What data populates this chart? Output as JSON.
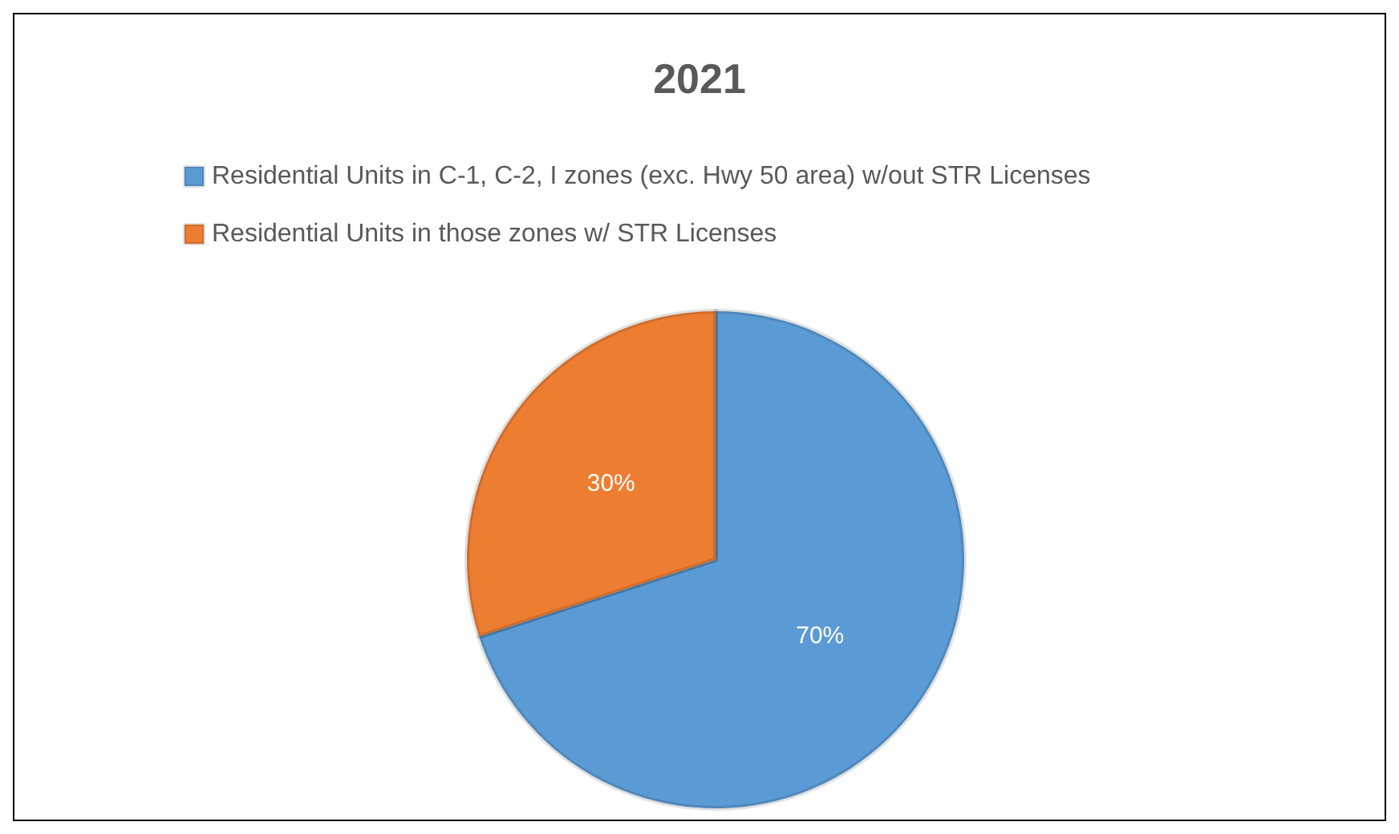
{
  "chart_data": {
    "type": "pie",
    "title": "2021",
    "categories": [
      "Residential Units in C-1, C-2, I zones (exc. Hwy 50 area) w/out STR Licenses",
      "Residential Units in those zones w/ STR Licenses"
    ],
    "values": [
      70,
      30
    ],
    "colors": [
      "#5b9bd5",
      "#ed7d31"
    ],
    "value_labels": [
      "70%",
      "30%"
    ],
    "legend": "top"
  }
}
